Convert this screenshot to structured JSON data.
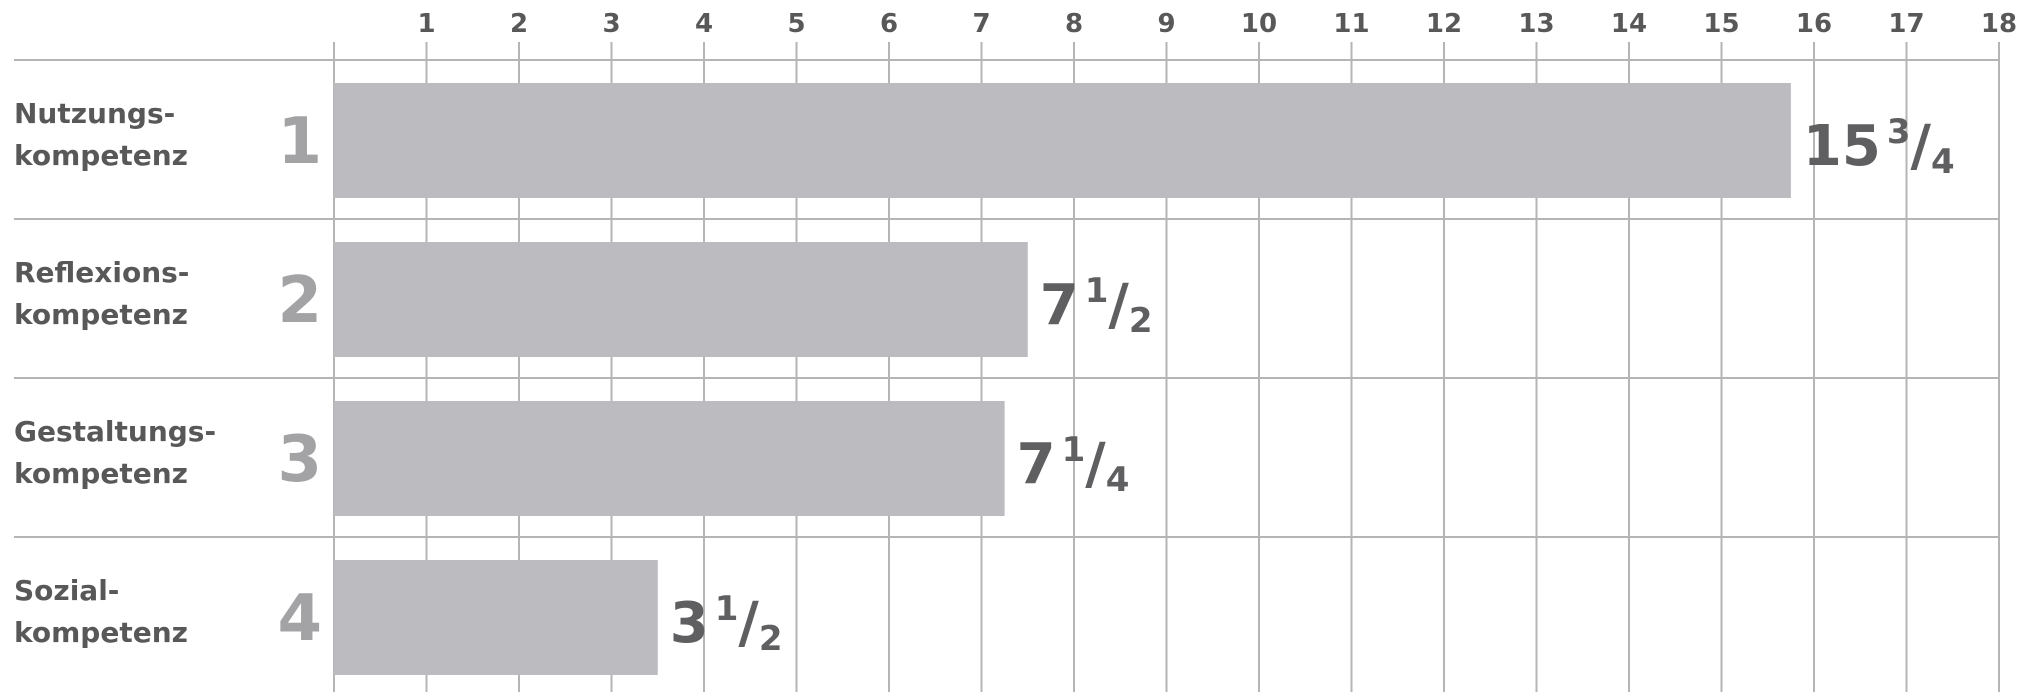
{
  "chart_data": {
    "type": "bar",
    "orientation": "horizontal",
    "categories": [
      [
        "Nutzungs-",
        "kompetenz"
      ],
      [
        "Reflexions-",
        "kompetenz"
      ],
      [
        "Gestaltungs-",
        "kompetenz"
      ],
      [
        "Sozial-",
        "kompetenz"
      ]
    ],
    "ranks": [
      "1",
      "2",
      "3",
      "4"
    ],
    "values": [
      15.75,
      7.5,
      7.25,
      3.5
    ],
    "value_labels": [
      {
        "whole": "15",
        "num": "3",
        "den": "4"
      },
      {
        "whole": "7",
        "num": "1",
        "den": "2"
      },
      {
        "whole": "7",
        "num": "1",
        "den": "4"
      },
      {
        "whole": "3",
        "num": "1",
        "den": "2"
      }
    ],
    "xticks": [
      "1",
      "2",
      "3",
      "4",
      "5",
      "6",
      "7",
      "8",
      "9",
      "10",
      "11",
      "12",
      "13",
      "14",
      "15",
      "16",
      "17",
      "18"
    ],
    "xlim": [
      0,
      18
    ],
    "axis_position": "top",
    "grid": true,
    "colors": {
      "bar": "#bcbcc0",
      "grid": "#b5b5b5",
      "axis_text": "#585858",
      "rank": "#a3a3a6",
      "value_label": "#5f5f61"
    }
  }
}
